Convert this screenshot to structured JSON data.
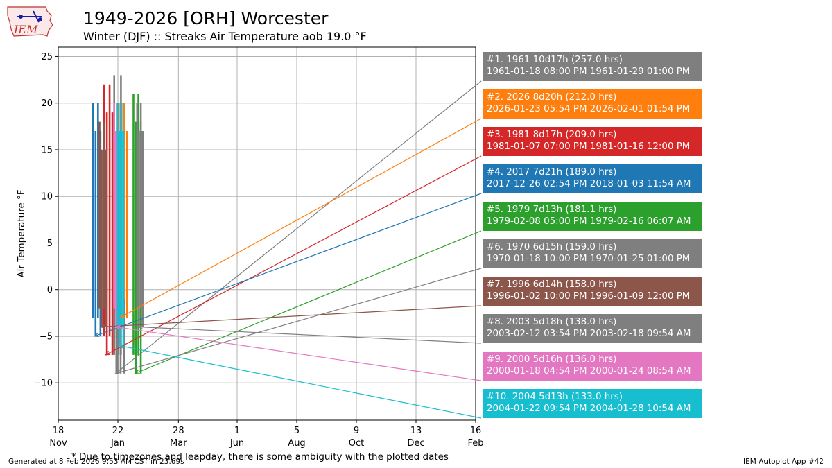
{
  "title": "1949-2026 [ORH] Worcester",
  "subtitle": "Winter (DJF) :: Streaks Air Temperature aob 19.0 °F",
  "logo_text": "IEM",
  "footnote": "* Due to timezones and leapday, there is some ambiguity with the plotted dates",
  "generated": "Generated at 8 Feb 2026 9:53 AM CST in 23.69s",
  "app_id": "IEM Autoplot App #42",
  "chart_data": {
    "type": "line",
    "title": "1949-2026 [ORH] Worcester",
    "subtitle": "Winter (DJF) :: Streaks Air Temperature aob 19.0 °F",
    "xlabel": "",
    "ylabel": "Air Temperature °F",
    "ylim": [
      -14,
      26
    ],
    "yticks": [
      -10,
      -5,
      0,
      5,
      10,
      15,
      20,
      25
    ],
    "xlim": [
      "Nov 18",
      "Feb 16 (next year)"
    ],
    "xticks": [
      {
        "day": "18",
        "month": "Nov"
      },
      {
        "day": "22",
        "month": "Jan"
      },
      {
        "day": "28",
        "month": "Mar"
      },
      {
        "day": "1",
        "month": "Jun"
      },
      {
        "day": "5",
        "month": "Aug"
      },
      {
        "day": "9",
        "month": "Oct"
      },
      {
        "day": "13",
        "month": "Dec"
      },
      {
        "day": "16",
        "month": "Feb"
      }
    ],
    "grid": true,
    "legend_placement": "right",
    "series": [
      {
        "rank": 1,
        "name": "#1. 1961 10d17h (257.0 hrs)",
        "period": "1961-01-18 08:00 PM 1961-01-29 01:00 PM",
        "color": "#7f7f7f",
        "start": "Jan 18",
        "end": "Jan 29",
        "min_temp": -9,
        "max_temp": 23
      },
      {
        "rank": 2,
        "name": "#2. 2026 8d20h (212.0 hrs)",
        "period": "2026-01-23 05:54 PM 2026-02-01 01:54 PM",
        "color": "#ff7f0e",
        "start": "Jan 23",
        "end": "Feb 1",
        "min_temp": -3,
        "max_temp": 20
      },
      {
        "rank": 3,
        "name": "#3. 1981 8d17h (209.0 hrs)",
        "period": "1981-01-07 07:00 PM 1981-01-16 12:00 PM",
        "color": "#d62728",
        "start": "Jan 7",
        "end": "Jan 16",
        "min_temp": -7,
        "max_temp": 22
      },
      {
        "rank": 4,
        "name": "#4. 2017 7d21h (189.0 hrs)",
        "period": "2017-12-26 02:54 PM 2018-01-03 11:54 AM",
        "color": "#1f77b4",
        "start": "Dec 26",
        "end": "Jan 3",
        "min_temp": -5,
        "max_temp": 20
      },
      {
        "rank": 5,
        "name": "#5. 1979 7d13h (181.1 hrs)",
        "period": "1979-02-08 05:00 PM 1979-02-16 06:07 AM",
        "color": "#2ca02c",
        "start": "Feb 8",
        "end": "Feb 16",
        "min_temp": -9,
        "max_temp": 21
      },
      {
        "rank": 6,
        "name": "#6. 1970 6d15h (159.0 hrs)",
        "period": "1970-01-18 10:00 PM 1970-01-25 01:00 PM",
        "color": "#7f7f7f",
        "start": "Jan 18",
        "end": "Jan 25",
        "min_temp": -9,
        "max_temp": 20
      },
      {
        "rank": 7,
        "name": "#7. 1996 6d14h (158.0 hrs)",
        "period": "1996-01-02 10:00 PM 1996-01-09 12:00 PM",
        "color": "#8c564b",
        "start": "Jan 2",
        "end": "Jan 9",
        "min_temp": -4,
        "max_temp": 18
      },
      {
        "rank": 8,
        "name": "#8. 2003 5d18h (138.0 hrs)",
        "period": "2003-02-12 03:54 PM 2003-02-18 09:54 AM",
        "color": "#7f7f7f",
        "start": "Feb 12",
        "end": "Feb 18",
        "min_temp": -4,
        "max_temp": 20
      },
      {
        "rank": 9,
        "name": "#9. 2000 5d16h (136.0 hrs)",
        "period": "2000-01-18 04:54 PM 2000-01-24 08:54 AM",
        "color": "#e377c2",
        "start": "Jan 18",
        "end": "Jan 24",
        "min_temp": -4,
        "max_temp": 20
      },
      {
        "rank": 10,
        "name": "#10. 2004 5d13h (133.0 hrs)",
        "period": "2004-01-22 09:54 PM 2004-01-28 10:54 AM",
        "color": "#17becf",
        "start": "Jan 22",
        "end": "Jan 28",
        "min_temp": -6,
        "max_temp": 20
      }
    ]
  }
}
